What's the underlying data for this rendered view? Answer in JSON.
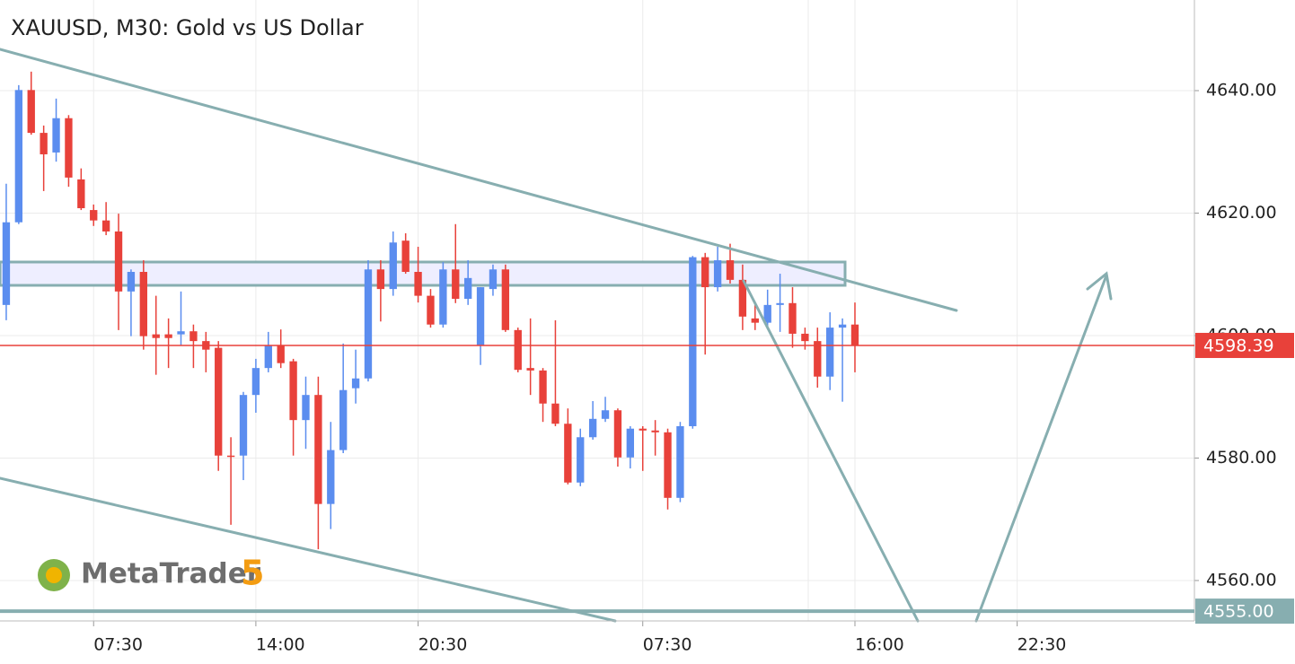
{
  "chart_data": {
    "type": "candlestick",
    "title": "XAUUSD, M30: Gold vs US Dollar",
    "brand": {
      "name": "MetaTrader",
      "version": "5"
    },
    "up_color": "#5b8def",
    "down_color": "#e8413a",
    "grid": true,
    "xlim": [
      -0.5,
      95.2
    ],
    "xticks": [
      {
        "value": 7,
        "label": "07:30"
      },
      {
        "value": 20,
        "label": "14:00"
      },
      {
        "value": 33,
        "label": "20:30"
      },
      {
        "value": 51,
        "label": "07:30"
      },
      {
        "value": 68,
        "label": "16:00"
      },
      {
        "value": 81,
        "label": "22:30"
      }
    ],
    "ylim": [
      4553.4,
      4654.8
    ],
    "yticks": [
      {
        "value": 4640,
        "label": "4640.00"
      },
      {
        "value": 4620,
        "label": "4620.00"
      },
      {
        "value": 4600,
        "label": "4600.00"
      },
      {
        "value": 4580,
        "label": "4580.00"
      },
      {
        "value": 4560,
        "label": "4560.00"
      }
    ],
    "price_lines": [
      {
        "value": 4598.39,
        "label": "4598.39",
        "color": "#e8413a"
      },
      {
        "value": 4555,
        "label": "4555.00",
        "color": "#87aeb0"
      }
    ],
    "open": [
      4605.0,
      4618.5,
      4640.1,
      4633.1,
      4629.9,
      4635.5,
      4625.5,
      4620.5,
      4618.8,
      4617.0,
      4607.2,
      4610.4,
      4600.2,
      4600.2,
      4600.2,
      4600.7,
      4599.1,
      4598.0,
      4580.4,
      4580.4,
      4590.3,
      4594.7,
      4598.4,
      4595.8,
      4586.2,
      4590.3,
      4572.5,
      4581.3,
      4591.4,
      4593.0,
      4610.8,
      4607.6,
      4615.5,
      4610.4,
      4606.5,
      4601.8,
      4610.8,
      4606.0,
      4598.4,
      4607.6,
      4610.8,
      4600.9,
      4594.7,
      4594.3,
      4588.9,
      4585.6,
      4576.0,
      4583.4,
      4586.4,
      4587.8,
      4580.1,
      4584.8,
      4584.5,
      4584.2,
      4573.5,
      4585.2,
      4612.8,
      4607.9,
      4612.3,
      4609.1,
      4602.8,
      4602.1,
      4605.0,
      4605.3,
      4600.3,
      4599.1,
      4593.3,
      4601.3,
      4601.8
    ],
    "high": [
      4624.8,
      4640.9,
      4643.1,
      4634.3,
      4638.7,
      4636.0,
      4627.3,
      4621.4,
      4621.8,
      4619.9,
      4610.8,
      4612.3,
      4606.5,
      4602.8,
      4607.2,
      4601.8,
      4600.6,
      4599.1,
      4583.4,
      4590.8,
      4596.2,
      4600.6,
      4601.0,
      4596.2,
      4593.3,
      4593.3,
      4585.9,
      4598.7,
      4597.7,
      4612.3,
      4612.3,
      4617.0,
      4616.7,
      4614.5,
      4607.6,
      4612.0,
      4618.2,
      4612.3,
      4607.9,
      4611.6,
      4611.6,
      4601.3,
      4602.8,
      4594.7,
      4602.5,
      4588.1,
      4584.8,
      4589.3,
      4590.0,
      4588.1,
      4585.2,
      4585.2,
      4586.2,
      4584.8,
      4585.9,
      4613.0,
      4613.5,
      4614.5,
      4615.0,
      4611.6,
      4605.0,
      4607.5,
      4610.1,
      4607.9,
      4601.3,
      4601.3,
      4603.8,
      4602.8,
      4605.4
    ],
    "low": [
      4602.5,
      4618.2,
      4632.8,
      4623.6,
      4628.4,
      4624.3,
      4620.5,
      4617.9,
      4616.4,
      4600.9,
      4599.9,
      4597.7,
      4593.6,
      4594.7,
      4598.4,
      4594.7,
      4594.0,
      4577.9,
      4569.1,
      4576.4,
      4587.4,
      4594.0,
      4594.7,
      4580.4,
      4581.5,
      4565.1,
      4568.4,
      4580.8,
      4588.9,
      4592.5,
      4602.3,
      4606.5,
      4610.1,
      4605.4,
      4601.3,
      4601.3,
      4605.3,
      4605.0,
      4595.2,
      4606.5,
      4600.6,
      4594.0,
      4590.3,
      4585.9,
      4585.2,
      4575.7,
      4575.4,
      4583.0,
      4585.9,
      4578.6,
      4578.3,
      4577.9,
      4580.4,
      4571.6,
      4572.8,
      4584.8,
      4596.9,
      4607.2,
      4608.5,
      4600.9,
      4600.9,
      4601.3,
      4600.6,
      4598.0,
      4597.7,
      4591.5,
      4591.1,
      4589.2,
      4594.0
    ],
    "close": [
      4618.5,
      4640.1,
      4633.1,
      4629.6,
      4635.5,
      4625.8,
      4620.8,
      4618.8,
      4617.0,
      4607.2,
      4610.4,
      4599.9,
      4599.6,
      4599.6,
      4600.7,
      4599.1,
      4597.7,
      4580.4,
      4580.2,
      4590.3,
      4594.7,
      4598.4,
      4595.5,
      4586.2,
      4590.3,
      4572.5,
      4581.3,
      4591.1,
      4593.0,
      4610.8,
      4607.6,
      4615.2,
      4610.4,
      4606.5,
      4601.8,
      4610.8,
      4606.0,
      4609.4,
      4607.9,
      4610.8,
      4600.9,
      4594.4,
      4594.3,
      4588.9,
      4585.6,
      4576.0,
      4583.4,
      4586.4,
      4587.8,
      4580.1,
      4584.8,
      4584.5,
      4584.2,
      4573.5,
      4585.2,
      4612.8,
      4607.9,
      4612.3,
      4609.1,
      4603.1,
      4602.1,
      4605.0,
      4605.3,
      4600.3,
      4599.1,
      4593.3,
      4601.3,
      4601.8,
      4598.39
    ]
  }
}
